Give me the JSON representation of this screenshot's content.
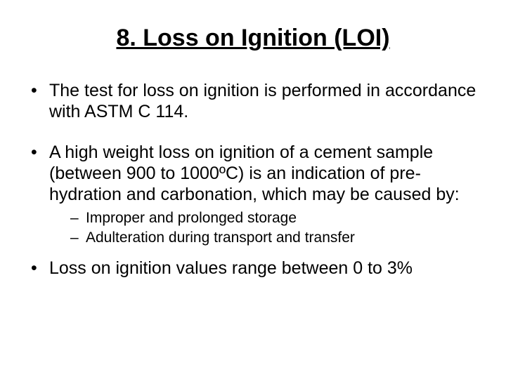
{
  "slide": {
    "title": "8. Loss on Ignition (LOI)",
    "bullets": [
      {
        "text": "The test for loss on ignition is performed in accordance with ASTM C 114."
      },
      {
        "text": "A high weight loss on ignition of a cement sample (between 900 to 1000ºC) is an indication of pre-hydration and carbonation, which may be caused by:",
        "subs": [
          "Improper and prolonged storage",
          "Adulteration during transport and transfer"
        ]
      },
      {
        "text": "Loss on ignition values range between 0 to 3%"
      }
    ]
  },
  "styling": {
    "background_color": "#ffffff",
    "text_color": "#000000",
    "title_fontsize": 34,
    "title_weight": "bold",
    "title_underline": true,
    "bullet_fontsize": 25,
    "sub_fontsize": 21,
    "font_family": "Arial",
    "slide_width": 720,
    "slide_height": 540
  }
}
